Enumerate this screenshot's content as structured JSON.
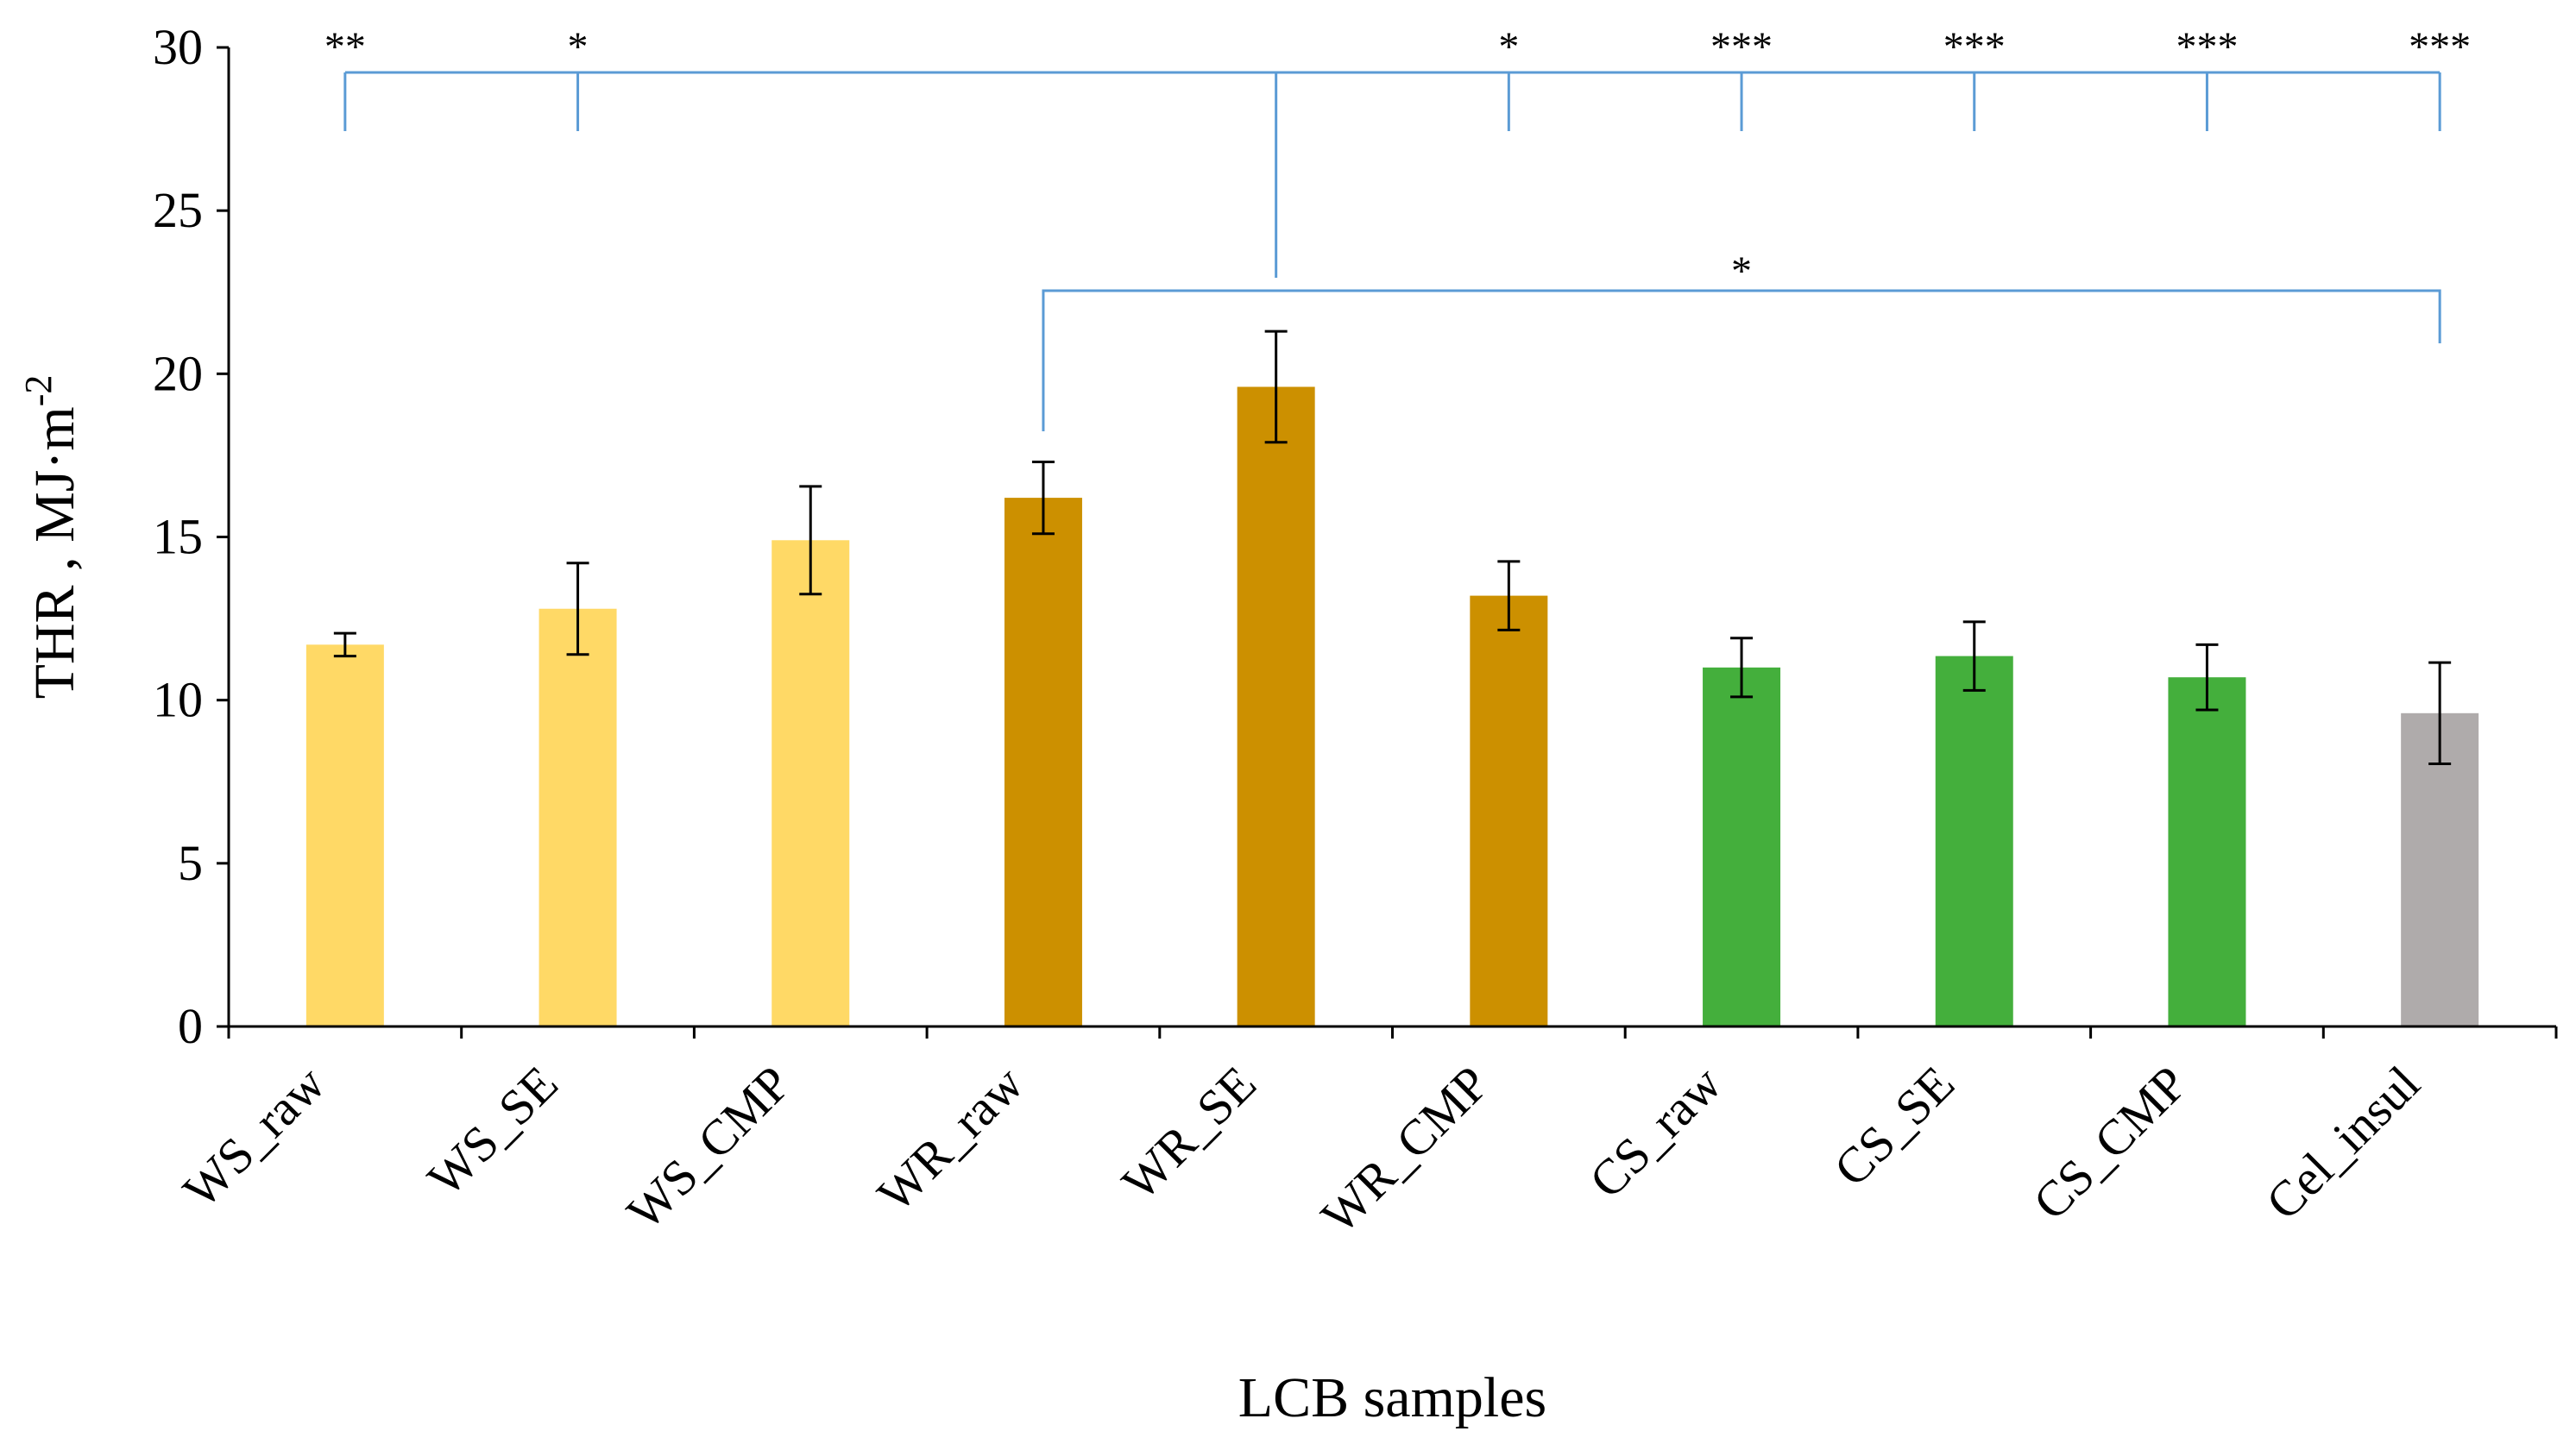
{
  "chart_data": {
    "type": "bar",
    "xlabel": "LCB samples",
    "ylabel": "THR , MJ·m",
    "ylabel_superscript": "-2",
    "ylim": [
      0,
      30
    ],
    "yticks": [
      0,
      5,
      10,
      15,
      20,
      25,
      30
    ],
    "grid": false,
    "legend": "none",
    "categories": [
      "WS_raw",
      "WS_SE",
      "WS_CMP",
      "WR_raw",
      "WR_SE",
      "WR_CMP",
      "CS_raw",
      "CS_SE",
      "CS_CMP",
      "Cel_insul"
    ],
    "values": [
      11.7,
      12.8,
      14.9,
      16.2,
      19.6,
      13.2,
      11.0,
      11.35,
      10.7,
      9.6
    ],
    "errors": [
      0.35,
      1.4,
      1.65,
      1.1,
      1.7,
      1.05,
      0.9,
      1.05,
      1.0,
      1.55
    ],
    "colors": [
      "#FFD966",
      "#FFD966",
      "#FFD966",
      "#CC9000",
      "#CC9000",
      "#CC9000",
      "#44AF3C",
      "#44AF3C",
      "#44AF3C",
      "#AFABAB"
    ],
    "significance_top": {
      "reference": "WR_SE",
      "marks": [
        {
          "category": "WS_raw",
          "label": "**"
        },
        {
          "category": "WS_SE",
          "label": "*"
        },
        {
          "category": "WR_CMP",
          "label": "*"
        },
        {
          "category": "CS_raw",
          "label": "***"
        },
        {
          "category": "CS_SE",
          "label": "***"
        },
        {
          "category": "CS_CMP",
          "label": "***"
        },
        {
          "category": "Cel_insul",
          "label": "***"
        }
      ]
    },
    "significance_lower": {
      "from": "WR_raw",
      "to": "Cel_insul",
      "label": "*"
    },
    "bracket_color": "#5B9BD5"
  }
}
